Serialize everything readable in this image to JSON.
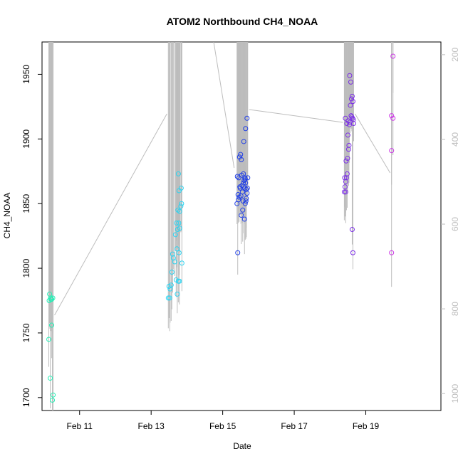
{
  "chart_data": {
    "type": "scatter",
    "title": "ATOM2 Northbound CH4_NOAA",
    "xlabel": "Date",
    "ylabel": "CH4_NOAA",
    "x_unit": "days (February)",
    "xlim": [
      9.95,
      21.1
    ],
    "ylim": [
      1690,
      1975
    ],
    "x_ticks": [
      {
        "value": 11,
        "label": "Feb 11"
      },
      {
        "value": 13,
        "label": "Feb 13"
      },
      {
        "value": 15,
        "label": "Feb 15"
      },
      {
        "value": 17,
        "label": "Feb 17"
      },
      {
        "value": 19,
        "label": "Feb 19"
      }
    ],
    "y_ticks": [
      1700,
      1750,
      1800,
      1850,
      1900,
      1950
    ],
    "right_axis": {
      "description": "altitude (pressure) trace, inverted",
      "ylim": [
        1040,
        170
      ],
      "ticks": [
        200,
        400,
        600,
        800,
        1000
      ],
      "color": "#bdbdbd"
    },
    "grid": false,
    "legend": "none",
    "series": [
      {
        "color": "#21f0b6",
        "points": [
          [
            10.16,
            1780
          ],
          [
            10.19,
            1777
          ],
          [
            10.2,
            1776
          ],
          [
            10.22,
            1776
          ],
          [
            10.25,
            1777
          ],
          [
            10.15,
            1775
          ],
          [
            10.14,
            1745
          ],
          [
            10.22,
            1756
          ],
          [
            10.18,
            1715
          ],
          [
            10.26,
            1702
          ],
          [
            10.24,
            1698
          ]
        ]
      },
      {
        "color": "#2ad4f2",
        "points": [
          [
            13.48,
            1777
          ],
          [
            13.52,
            1777
          ],
          [
            13.5,
            1786
          ],
          [
            13.53,
            1784
          ],
          [
            13.56,
            1787
          ],
          [
            13.58,
            1797
          ],
          [
            13.62,
            1808
          ],
          [
            13.6,
            1811
          ],
          [
            13.66,
            1805
          ],
          [
            13.7,
            1791
          ],
          [
            13.73,
            1780
          ],
          [
            13.76,
            1790
          ],
          [
            13.72,
            1815
          ],
          [
            13.78,
            1812
          ],
          [
            13.68,
            1826
          ],
          [
            13.74,
            1830
          ],
          [
            13.77,
            1835
          ],
          [
            13.8,
            1831
          ],
          [
            13.71,
            1835
          ],
          [
            13.75,
            1845
          ],
          [
            13.83,
            1848
          ],
          [
            13.85,
            1850
          ],
          [
            13.8,
            1844
          ],
          [
            13.78,
            1860
          ],
          [
            13.84,
            1862
          ],
          [
            13.76,
            1873
          ],
          [
            13.86,
            1804
          ],
          [
            13.79,
            1790
          ]
        ]
      },
      {
        "color": "#1f3ee6",
        "points": [
          [
            15.42,
            1812
          ],
          [
            15.4,
            1850
          ],
          [
            15.43,
            1857
          ],
          [
            15.45,
            1870
          ],
          [
            15.47,
            1886
          ],
          [
            15.5,
            1888
          ],
          [
            15.52,
            1884
          ],
          [
            15.53,
            1872
          ],
          [
            15.49,
            1862
          ],
          [
            15.46,
            1855
          ],
          [
            15.55,
            1859
          ],
          [
            15.58,
            1866
          ],
          [
            15.6,
            1868
          ],
          [
            15.62,
            1870
          ],
          [
            15.64,
            1866
          ],
          [
            15.66,
            1861
          ],
          [
            15.68,
            1858
          ],
          [
            15.7,
            1870
          ],
          [
            15.63,
            1850
          ],
          [
            15.65,
            1852
          ],
          [
            15.61,
            1838
          ],
          [
            15.56,
            1845
          ],
          [
            15.52,
            1841
          ],
          [
            15.59,
            1898
          ],
          [
            15.64,
            1908
          ],
          [
            15.68,
            1916
          ],
          [
            15.54,
            1864
          ],
          [
            15.57,
            1852
          ],
          [
            15.44,
            1853
          ],
          [
            15.48,
            1863
          ],
          [
            15.51,
            1856
          ],
          [
            15.62,
            1862
          ],
          [
            15.66,
            1854
          ],
          [
            15.69,
            1862
          ],
          [
            15.41,
            1871
          ],
          [
            15.58,
            1873
          ],
          [
            15.63,
            1869
          ]
        ]
      },
      {
        "color": "#7b2ee6",
        "points": [
          [
            18.4,
            1859
          ],
          [
            18.42,
            1863
          ],
          [
            18.44,
            1867
          ],
          [
            18.46,
            1870
          ],
          [
            18.48,
            1873
          ],
          [
            18.43,
            1916
          ],
          [
            18.47,
            1912
          ],
          [
            18.5,
            1903
          ],
          [
            18.52,
            1892
          ],
          [
            18.45,
            1883
          ],
          [
            18.49,
            1885
          ],
          [
            18.53,
            1895
          ],
          [
            18.55,
            1949
          ],
          [
            18.58,
            1944
          ],
          [
            18.6,
            1931
          ],
          [
            18.62,
            1933
          ],
          [
            18.64,
            1929
          ],
          [
            18.57,
            1926
          ],
          [
            18.61,
            1917
          ],
          [
            18.65,
            1915
          ],
          [
            18.66,
            1912
          ],
          [
            18.56,
            1913
          ],
          [
            18.59,
            1918
          ],
          [
            18.63,
            1916
          ],
          [
            18.51,
            1914
          ],
          [
            18.54,
            1911
          ],
          [
            18.41,
            1870
          ],
          [
            18.44,
            1859
          ],
          [
            18.62,
            1830
          ],
          [
            18.64,
            1812
          ]
        ]
      },
      {
        "color": "#cc33e6",
        "points": [
          [
            19.76,
            1964
          ],
          [
            19.72,
            1918
          ],
          [
            19.76,
            1916
          ],
          [
            19.72,
            1891
          ],
          [
            19.72,
            1812
          ]
        ]
      }
    ]
  }
}
